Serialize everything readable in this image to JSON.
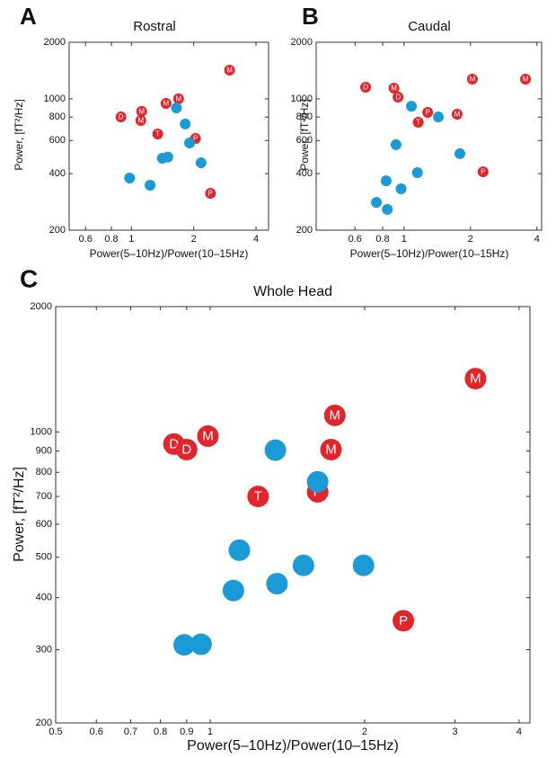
{
  "chart_data": [
    {
      "type": "scatter",
      "panel": "A",
      "title": "Rostral",
      "xlabel": "Power(5–10Hz)/Power(10–15Hz)",
      "ylabel": "Power, [fT²/Hz]",
      "xscale": "log",
      "yscale": "log",
      "xlim": [
        0.5,
        4.6
      ],
      "ylim": [
        200,
        2000
      ],
      "xticks": [
        0.6,
        0.8,
        1,
        2,
        4
      ],
      "yticks": [
        200,
        400,
        600,
        800,
        1000,
        2000
      ],
      "series": [
        {
          "color": "#e3242b",
          "x": [
            2.98,
            1.69,
            1.47,
            1.12,
            0.89,
            1.11,
            1.34,
            2.04,
            2.41
          ],
          "values": [
            1422,
            1000,
            946,
            857,
            801,
            767,
            650,
            615,
            314
          ],
          "point_labels": [
            "M",
            "M",
            "M",
            "M",
            "D",
            "M",
            "T",
            "P",
            "P"
          ]
        },
        {
          "color": "#1a9ad6",
          "x": [
            1.65,
            1.82,
            1.91,
            1.41,
            1.5,
            2.17,
            0.98,
            1.23
          ],
          "values": [
            895,
            735,
            582,
            483,
            490,
            457,
            379,
            347
          ]
        }
      ]
    },
    {
      "type": "scatter",
      "panel": "B",
      "title": "Caudal",
      "xlabel": "Power(5–10Hz)/Power(10–15Hz)",
      "ylabel": "Power, [fT²/Hz]",
      "xscale": "log",
      "yscale": "log",
      "xlim": [
        0.4,
        4.2
      ],
      "ylim": [
        200,
        2000
      ],
      "xticks": [
        0.6,
        0.8,
        1,
        2,
        4
      ],
      "yticks": [
        200,
        400,
        600,
        800,
        1000,
        2000
      ],
      "series": [
        {
          "color": "#e3242b",
          "x": [
            0.67,
            0.9,
            0.94,
            2.04,
            3.55,
            1.28,
            1.16,
            1.74,
            2.28
          ],
          "values": [
            1153,
            1140,
            1021,
            1273,
            1273,
            847,
            750,
            828,
            409
          ],
          "point_labels": [
            "D",
            "M",
            "D",
            "M",
            "M",
            "P",
            "T",
            "M",
            "P"
          ]
        },
        {
          "color": "#1a9ad6",
          "x": [
            1.08,
            1.43,
            0.92,
            1.79,
            1.15,
            0.83,
            0.97,
            0.75,
            0.84
          ],
          "values": [
            914,
            801,
            570,
            511,
            405,
            366,
            332,
            281,
            258
          ]
        }
      ]
    },
    {
      "type": "scatter",
      "panel": "C",
      "title": "Whole Head",
      "xlabel": "Power(5–10Hz)/Power(10–15Hz)",
      "ylabel": "Power, [fT²/Hz]",
      "xscale": "log",
      "yscale": "log",
      "xlim": [
        0.5,
        4.2
      ],
      "ylim": [
        200,
        2000
      ],
      "xticks": [
        0.5,
        0.6,
        0.7,
        0.8,
        0.9,
        1,
        2,
        3,
        4
      ],
      "yticks": [
        200,
        300,
        400,
        500,
        600,
        700,
        800,
        900,
        1000,
        2000
      ],
      "series": [
        {
          "color": "#e3242b",
          "x": [
            3.29,
            1.75,
            0.99,
            0.85,
            0.9,
            1.72,
            1.24,
            1.62,
            2.38
          ],
          "values": [
            1343,
            1096,
            977,
            935,
            907,
            907,
            700,
            718,
            352
          ],
          "point_labels": [
            "M",
            "M",
            "M",
            "D",
            "D",
            "M",
            "T",
            "P",
            "P"
          ]
        },
        {
          "color": "#1a9ad6",
          "x": [
            1.34,
            1.62,
            1.14,
            1.52,
            1.99,
            1.35,
            1.11,
            0.89,
            0.96
          ],
          "values": [
            904,
            759,
            520,
            478,
            478,
            432,
            416,
            308,
            309
          ]
        }
      ]
    }
  ]
}
